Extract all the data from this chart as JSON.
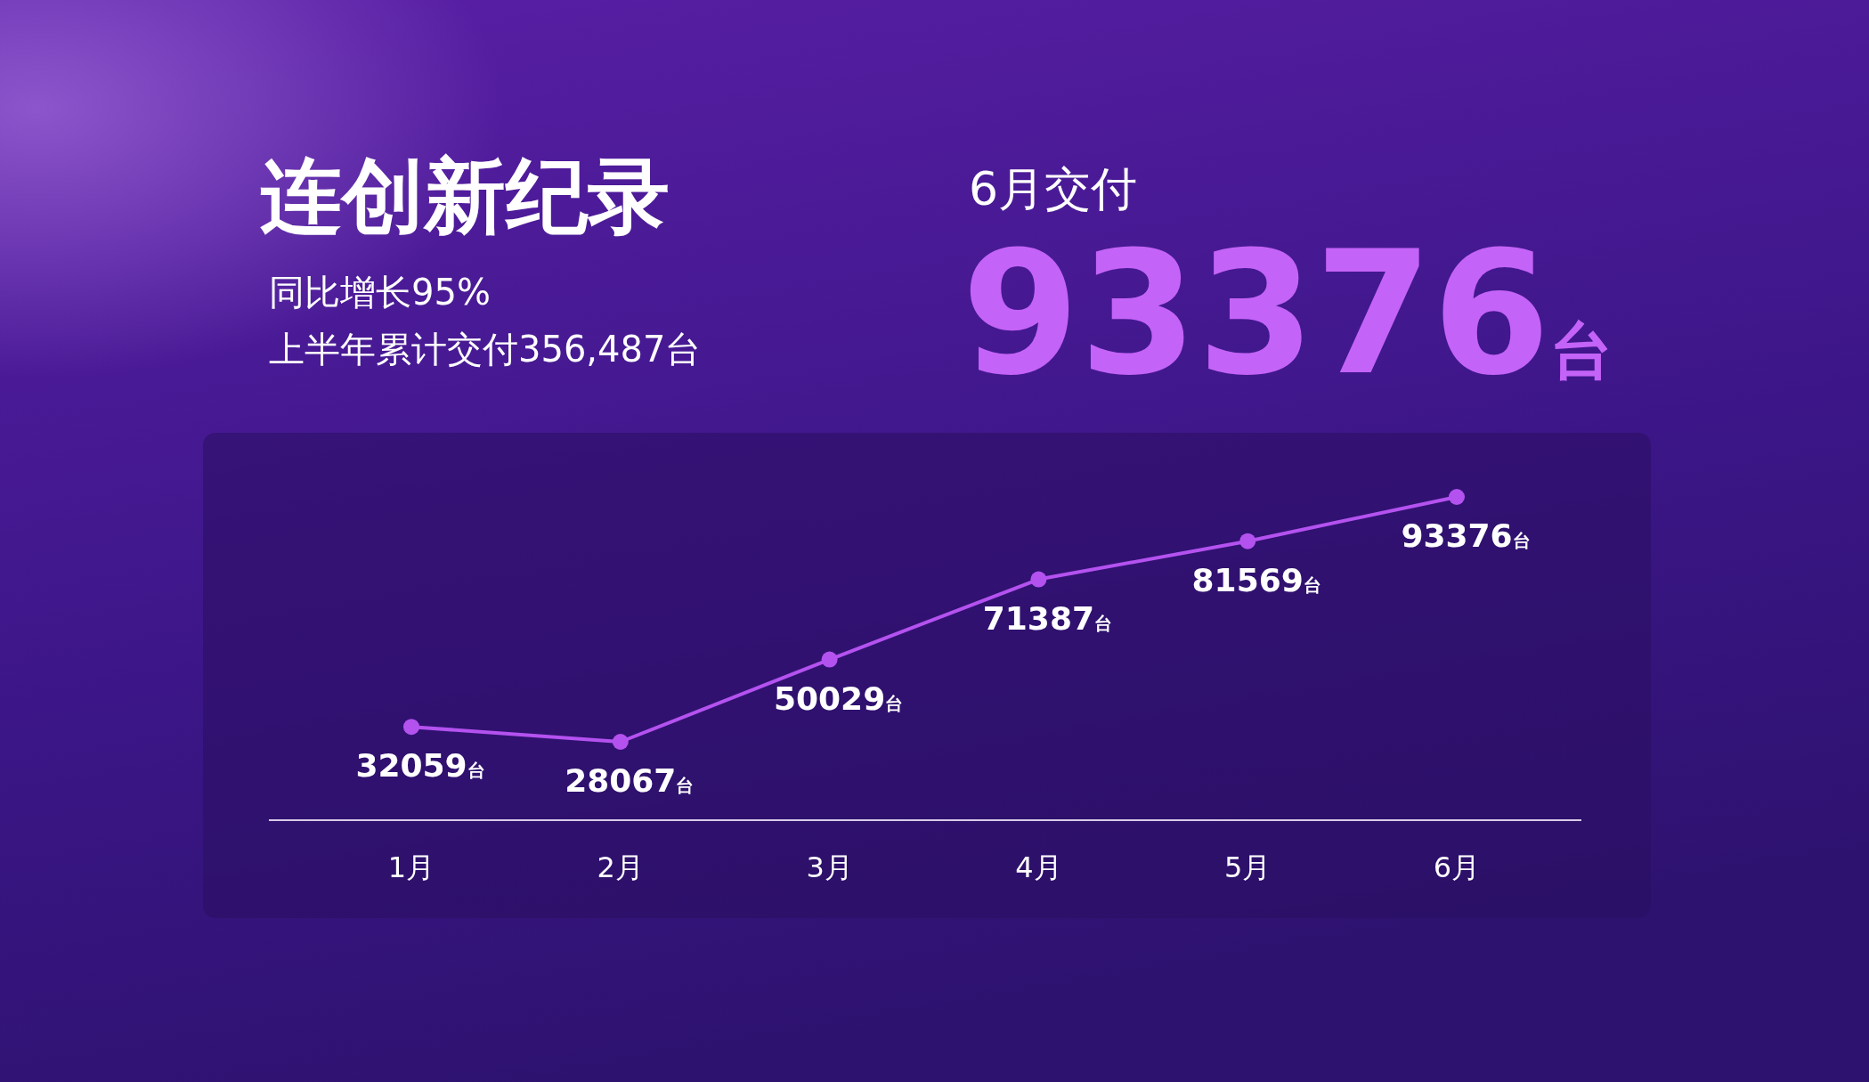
{
  "chart_data": {
    "type": "line",
    "title": "连创新纪录",
    "subtitle": "同比增长95%",
    "annotations": [
      "上半年累计交付356,487台",
      "6月交付",
      "93376台"
    ],
    "categories": [
      "1月",
      "2月",
      "3月",
      "4月",
      "5月",
      "6月"
    ],
    "series": [
      {
        "color": "#b452f0",
        "values": [
          32059,
          28067,
          50029,
          71387,
          81569,
          93376
        ],
        "value_labels": [
          "32059台",
          "28067台",
          "50029台",
          "71387台",
          "81569台",
          "93376台"
        ]
      }
    ],
    "marker": "circle",
    "line_style": "solid",
    "grid": false
  }
}
